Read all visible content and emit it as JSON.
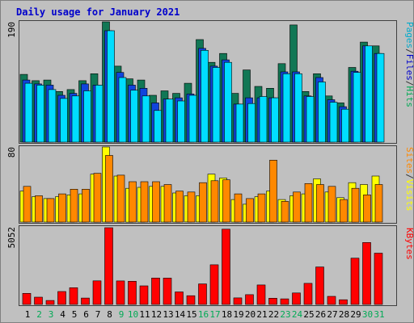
{
  "chart_data": [
    {
      "type": "bar",
      "title": "Daily usage for January 2021",
      "categories": [
        "1",
        "2",
        "3",
        "4",
        "5",
        "6",
        "7",
        "8",
        "9",
        "10",
        "11",
        "12",
        "13",
        "14",
        "15",
        "16",
        "17",
        "18",
        "19",
        "20",
        "21",
        "22",
        "23",
        "24",
        "25",
        "26",
        "27",
        "28",
        "29",
        "30",
        "31"
      ],
      "weekend_days": [
        2,
        3,
        9,
        10,
        16,
        17,
        23,
        24,
        30,
        31
      ],
      "ylim": [
        0,
        190
      ],
      "y_tick_label": "190",
      "right_labels": [
        {
          "text": "Pages",
          "color": "#00aacc"
        },
        {
          "text": "/",
          "color": "#333333"
        },
        {
          "text": "Files",
          "color": "#0000cc"
        },
        {
          "text": "/",
          "color": "#333333"
        },
        {
          "text": "Hits",
          "color": "#00aa55"
        }
      ],
      "series": [
        {
          "name": "Hits",
          "color": "#117755",
          "values": [
            107,
            97,
            98,
            80,
            83,
            97,
            108,
            190,
            120,
            100,
            98,
            74,
            81,
            77,
            93,
            162,
            126,
            140,
            77,
            114,
            88,
            85,
            124,
            185,
            80,
            108,
            73,
            62,
            118,
            158,
            152
          ]
        },
        {
          "name": "Files",
          "color": "#1144dd",
          "values": [
            98,
            92,
            90,
            74,
            77,
            92,
            90,
            176,
            110,
            90,
            85,
            62,
            68,
            70,
            76,
            148,
            120,
            130,
            60,
            70,
            70,
            70,
            111,
            111,
            73,
            102,
            67,
            56,
            112,
            152,
            140
          ]
        },
        {
          "name": "Pages",
          "color": "#00ddff",
          "values": [
            93,
            90,
            83,
            69,
            73,
            81,
            90,
            176,
            102,
            82,
            73,
            50,
            68,
            65,
            74,
            145,
            118,
            126,
            60,
            61,
            72,
            70,
            108,
            108,
            72,
            95,
            63,
            52,
            110,
            152,
            140
          ]
        }
      ]
    },
    {
      "type": "bar",
      "ylim": [
        0,
        80
      ],
      "y_tick_label": "80",
      "right_labels": [
        {
          "text": "Sites",
          "color": "#ff8800"
        },
        {
          "text": "/",
          "color": "#333333"
        },
        {
          "text": "Visits",
          "color": "#ffff00"
        }
      ],
      "series": [
        {
          "name": "Visits",
          "color": "#ffff00",
          "values": [
            33,
            27,
            25,
            27,
            29,
            30,
            51,
            80,
            49,
            36,
            37,
            38,
            38,
            31,
            28,
            28,
            51,
            47,
            24,
            19,
            27,
            33,
            24,
            28,
            30,
            46,
            32,
            26,
            42,
            40,
            49
          ]
        },
        {
          "name": "Sites",
          "color": "#ff8800",
          "values": [
            38,
            28,
            25,
            30,
            35,
            35,
            52,
            71,
            50,
            43,
            43,
            43,
            40,
            33,
            32,
            42,
            44,
            45,
            30,
            25,
            30,
            66,
            22,
            32,
            41,
            40,
            38,
            24,
            36,
            29,
            40
          ]
        }
      ]
    },
    {
      "type": "bar",
      "ylim": [
        0,
        5052
      ],
      "y_tick_label": "5052",
      "right_labels": [
        {
          "text": "KBytes",
          "color": "#ff0000"
        }
      ],
      "series": [
        {
          "name": "KBytes",
          "color": "#ff0000",
          "values": [
            729,
            476,
            263,
            850,
            1101,
            418,
            1553,
            5052,
            1547,
            1528,
            1223,
            1740,
            1731,
            824,
            573,
            1351,
            2611,
            4955,
            432,
            645,
            1280,
            409,
            368,
            754,
            1390,
            2470,
            532,
            309,
            3046,
            4079,
            3377
          ]
        }
      ]
    }
  ]
}
